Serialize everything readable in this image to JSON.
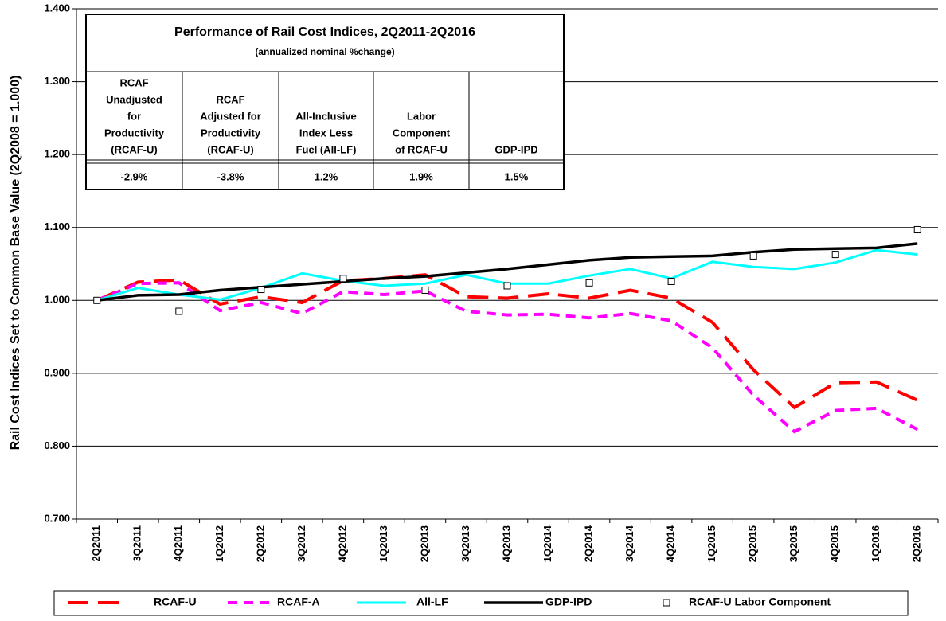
{
  "chart_data": {
    "type": "line",
    "y_label": "Rail Cost Indices Set to Common Base Value (2Q2008 = 1.000)",
    "categories": [
      "2Q2011",
      "3Q2011",
      "4Q2011",
      "1Q2012",
      "2Q2012",
      "3Q2012",
      "4Q2012",
      "1Q2013",
      "2Q2013",
      "3Q2013",
      "4Q2013",
      "1Q2014",
      "2Q2014",
      "3Q2014",
      "4Q2014",
      "1Q2015",
      "2Q2015",
      "3Q2015",
      "4Q2015",
      "1Q2016",
      "2Q2016"
    ],
    "ylim": [
      0.7,
      1.4
    ],
    "yticks": [
      {
        "value": 0.7,
        "label": "0.700"
      },
      {
        "value": 0.8,
        "label": "0.800"
      },
      {
        "value": 0.9,
        "label": "0.900"
      },
      {
        "value": 1.0,
        "label": "1.000"
      },
      {
        "value": 1.1,
        "label": "1.100"
      },
      {
        "value": 1.2,
        "label": "1.200"
      },
      {
        "value": 1.3,
        "label": "1.300"
      },
      {
        "value": 1.4,
        "label": "1.400"
      }
    ],
    "grid": true,
    "legend": "bottom",
    "series": [
      {
        "name": "RCAF-U",
        "color": "#ff0000",
        "line_style": "dashed",
        "values": [
          1.0,
          1.025,
          1.028,
          0.995,
          1.005,
          0.997,
          1.027,
          1.03,
          1.035,
          1.005,
          1.003,
          1.009,
          1.003,
          1.014,
          1.003,
          0.97,
          0.905,
          0.853,
          0.887,
          0.888,
          0.863
        ]
      },
      {
        "name": "RCAF-A",
        "color": "#ff00ff",
        "line_style": "dashed",
        "values": [
          1.0,
          1.023,
          1.024,
          0.986,
          0.997,
          0.982,
          1.012,
          1.008,
          1.013,
          0.985,
          0.98,
          0.981,
          0.976,
          0.982,
          0.972,
          0.935,
          0.87,
          0.82,
          0.849,
          0.852,
          0.823
        ]
      },
      {
        "name": "All-LF",
        "color": "#00ffff",
        "line_style": "solid",
        "values": [
          1.0,
          1.017,
          1.008,
          1.001,
          1.017,
          1.037,
          1.027,
          1.02,
          1.023,
          1.035,
          1.023,
          1.023,
          1.034,
          1.043,
          1.03,
          1.053,
          1.046,
          1.043,
          1.052,
          1.069,
          1.063
        ]
      },
      {
        "name": "GDP-IPD",
        "color": "#000000",
        "line_style": "solid",
        "values": [
          1.0,
          1.007,
          1.008,
          1.014,
          1.018,
          1.022,
          1.026,
          1.03,
          1.033,
          1.038,
          1.043,
          1.049,
          1.055,
          1.059,
          1.06,
          1.061,
          1.066,
          1.07,
          1.071,
          1.072,
          1.078
        ]
      },
      {
        "name": "RCAF-U Labor Component",
        "color": "#000000",
        "marker": "square",
        "values": [
          1.0,
          null,
          0.985,
          null,
          1.015,
          null,
          1.03,
          null,
          1.014,
          null,
          1.02,
          null,
          1.024,
          null,
          1.026,
          null,
          1.061,
          null,
          1.063,
          null,
          1.097
        ]
      }
    ],
    "table": {
      "title": "Performance of Rail Cost Indices, 2Q2011-2Q2016",
      "subtitle": "(annualized nominal %change)",
      "headers": [
        [
          "RCAF",
          "Unadjusted",
          "for",
          "Productivity",
          "(RCAF-U)"
        ],
        [
          "RCAF",
          "Adjusted for",
          "Productivity",
          "(RCAF-U)"
        ],
        [
          "All-Inclusive",
          "Index Less",
          "Fuel (All-LF)"
        ],
        [
          "Labor",
          "Component",
          "of RCAF-U"
        ],
        [
          "GDP-IPD"
        ]
      ],
      "values": [
        "-2.9%",
        "-3.8%",
        "1.2%",
        "1.9%",
        "1.5%"
      ]
    }
  }
}
